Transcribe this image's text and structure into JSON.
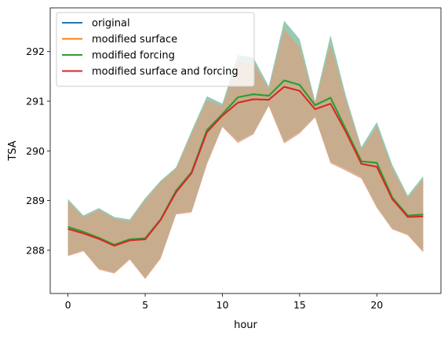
{
  "chart_data": {
    "type": "line",
    "title": "",
    "xlabel": "hour",
    "ylabel": "TSA",
    "xlim": [
      -1.15,
      24.15
    ],
    "ylim": [
      287.13,
      292.88
    ],
    "xticks": [
      0,
      5,
      10,
      15,
      20
    ],
    "yticks": [
      288,
      289,
      290,
      291,
      292
    ],
    "legend_position": "top-left",
    "x": [
      0,
      1,
      2,
      3,
      4,
      5,
      6,
      7,
      8,
      9,
      10,
      11,
      12,
      13,
      14,
      15,
      16,
      17,
      18,
      19,
      20,
      21,
      22,
      23
    ],
    "series": [
      {
        "name": "original",
        "color": "#1f77b4",
        "values": [
          288.47,
          288.37,
          288.25,
          288.11,
          288.22,
          288.24,
          288.62,
          289.2,
          289.57,
          290.42,
          290.74,
          291.08,
          291.14,
          291.11,
          291.42,
          291.33,
          290.92,
          291.07,
          290.43,
          289.79,
          289.76,
          289.06,
          288.7,
          288.72
        ],
        "lower": [
          287.9,
          288.0,
          287.63,
          287.55,
          287.83,
          287.44,
          287.85,
          288.74,
          288.78,
          289.75,
          290.5,
          290.2,
          290.35,
          290.93,
          290.18,
          290.38,
          290.7,
          289.78,
          289.64,
          289.47,
          288.88,
          288.44,
          288.32,
          287.98
        ],
        "upper": [
          289.03,
          288.7,
          288.85,
          288.67,
          288.62,
          289.05,
          289.4,
          289.67,
          290.4,
          291.1,
          290.95,
          291.93,
          291.88,
          291.3,
          292.62,
          292.25,
          291.0,
          292.33,
          291.1,
          290.08,
          290.58,
          289.72,
          289.1,
          289.49
        ],
        "band_color": "#7ebba0"
      },
      {
        "name": "modified surface",
        "color": "#ff7f0e",
        "values": [
          288.43,
          288.34,
          288.23,
          288.09,
          288.2,
          288.22,
          288.61,
          289.17,
          289.55,
          290.38,
          290.71,
          290.97,
          291.04,
          291.03,
          291.29,
          291.21,
          290.84,
          290.95,
          290.38,
          289.74,
          289.68,
          289.03,
          288.67,
          288.68
        ],
        "lower": [
          287.88,
          287.98,
          287.61,
          287.53,
          287.81,
          287.42,
          287.83,
          288.72,
          288.76,
          289.73,
          290.48,
          290.16,
          290.33,
          290.9,
          290.15,
          290.35,
          290.67,
          289.75,
          289.6,
          289.44,
          288.85,
          288.42,
          288.3,
          287.96
        ],
        "upper": [
          288.98,
          288.66,
          288.81,
          288.63,
          288.58,
          289.0,
          289.37,
          289.63,
          290.34,
          291.02,
          290.9,
          291.8,
          291.77,
          291.24,
          292.45,
          292.08,
          290.96,
          292.15,
          291.02,
          290.02,
          290.48,
          289.64,
          289.05,
          289.42
        ],
        "band_color": "#e6a17d"
      },
      {
        "name": "modified forcing",
        "color": "#2ca02c",
        "values": [
          288.47,
          288.37,
          288.25,
          288.11,
          288.22,
          288.24,
          288.62,
          289.2,
          289.57,
          290.42,
          290.74,
          291.08,
          291.14,
          291.11,
          291.42,
          291.33,
          290.92,
          291.07,
          290.43,
          289.79,
          289.76,
          289.06,
          288.7,
          288.72
        ],
        "lower": [
          287.9,
          288.0,
          287.63,
          287.55,
          287.83,
          287.44,
          287.85,
          288.74,
          288.78,
          289.75,
          290.5,
          290.2,
          290.35,
          290.93,
          290.18,
          290.38,
          290.7,
          289.78,
          289.64,
          289.47,
          288.88,
          288.44,
          288.32,
          287.98
        ],
        "upper": [
          289.03,
          288.7,
          288.85,
          288.67,
          288.62,
          289.05,
          289.4,
          289.67,
          290.4,
          291.1,
          290.95,
          291.93,
          291.88,
          291.3,
          292.62,
          292.25,
          291.0,
          292.33,
          291.1,
          290.08,
          290.58,
          289.72,
          289.1,
          289.49
        ],
        "band_color": "#7ebba0"
      },
      {
        "name": "modified surface and forcing",
        "color": "#d62728",
        "values": [
          288.43,
          288.34,
          288.23,
          288.09,
          288.2,
          288.22,
          288.61,
          289.17,
          289.55,
          290.38,
          290.71,
          290.97,
          291.04,
          291.03,
          291.29,
          291.21,
          290.84,
          290.95,
          290.38,
          289.74,
          289.68,
          289.03,
          288.67,
          288.68
        ],
        "lower": [
          287.88,
          287.98,
          287.61,
          287.53,
          287.81,
          287.42,
          287.83,
          288.72,
          288.76,
          289.73,
          290.48,
          290.16,
          290.33,
          290.9,
          290.15,
          290.35,
          290.67,
          289.75,
          289.6,
          289.44,
          288.85,
          288.42,
          288.3,
          287.96
        ],
        "upper": [
          288.98,
          288.66,
          288.81,
          288.63,
          288.58,
          289.0,
          289.37,
          289.63,
          290.34,
          291.02,
          290.9,
          291.8,
          291.77,
          291.24,
          292.45,
          292.08,
          290.96,
          292.15,
          291.02,
          290.02,
          290.48,
          289.64,
          289.05,
          289.42
        ],
        "band_color": "#e6a17d"
      }
    ]
  }
}
